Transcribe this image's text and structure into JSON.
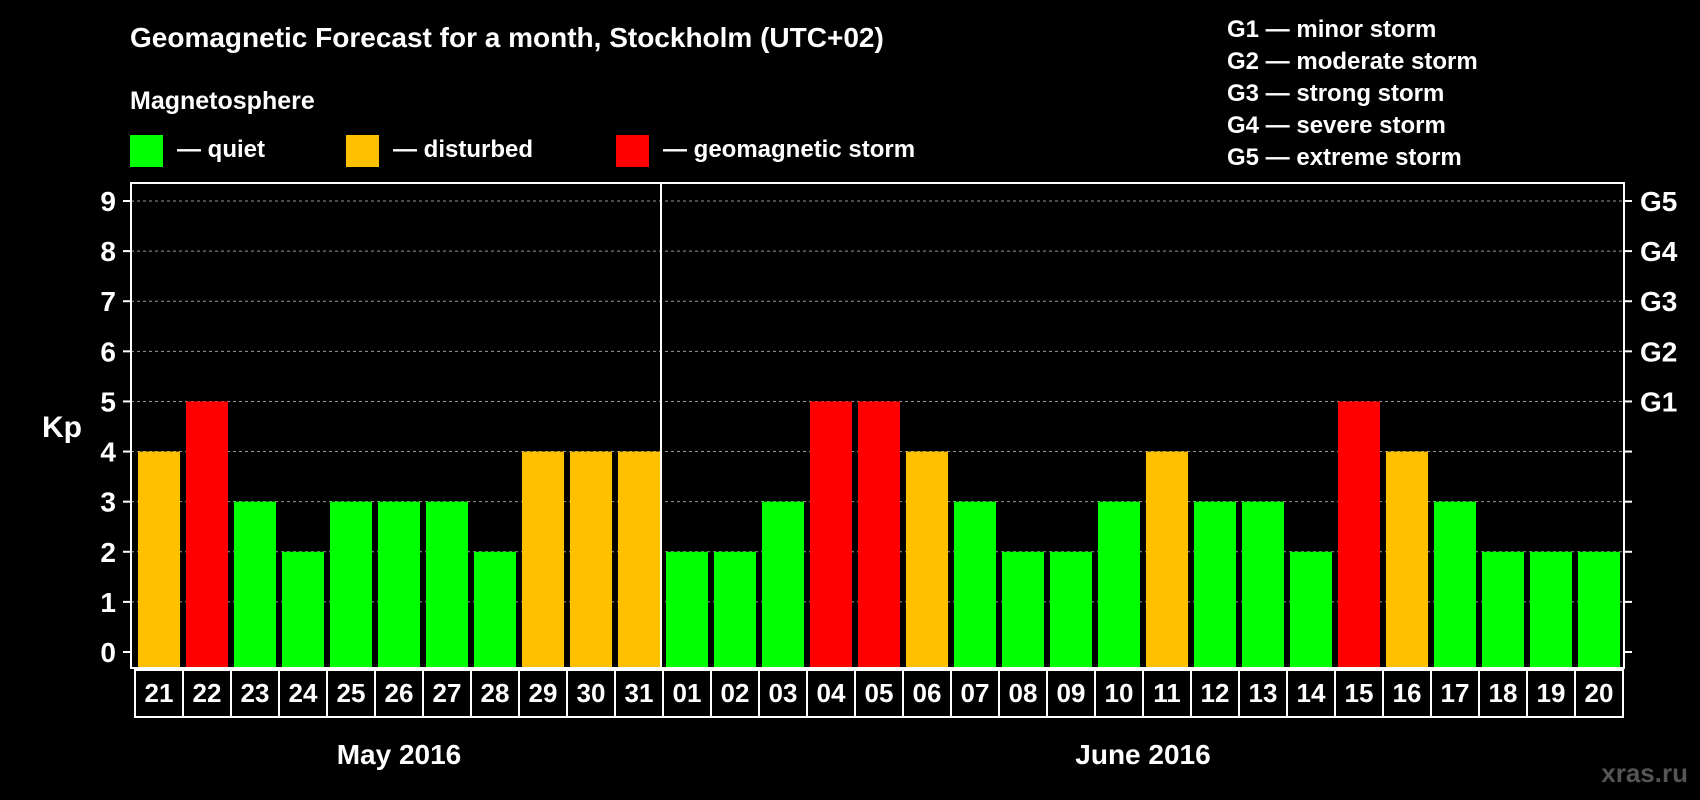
{
  "title": "Geomagnetic Forecast for a month, Stockholm (UTC+02)",
  "legend": {
    "heading": "Magnetosphere",
    "items": [
      {
        "key": "quiet",
        "label": "— quiet",
        "color": "#00ff00"
      },
      {
        "key": "disturbed",
        "label": "— disturbed",
        "color": "#ffc000"
      },
      {
        "key": "storm",
        "label": "— geomagnetic storm",
        "color": "#ff0000"
      }
    ]
  },
  "storm_scale": [
    "G1 — minor storm",
    "G2 — moderate storm",
    "G3 — strong storm",
    "G4 — severe storm",
    "G5 — extreme storm"
  ],
  "watermark": "xras.ru",
  "chart_data": {
    "type": "bar",
    "ylabel": "Kp",
    "ylim": [
      0,
      9
    ],
    "yticks": [
      0,
      1,
      2,
      3,
      4,
      5,
      6,
      7,
      8,
      9
    ],
    "right_axis_labels": [
      {
        "value": 5,
        "label": "G1"
      },
      {
        "value": 6,
        "label": "G2"
      },
      {
        "value": 7,
        "label": "G3"
      },
      {
        "value": 8,
        "label": "G4"
      },
      {
        "value": 9,
        "label": "G5"
      }
    ],
    "categories": [
      "21",
      "22",
      "23",
      "24",
      "25",
      "26",
      "27",
      "28",
      "29",
      "30",
      "31",
      "01",
      "02",
      "03",
      "04",
      "05",
      "06",
      "07",
      "08",
      "09",
      "10",
      "11",
      "12",
      "13",
      "14",
      "15",
      "16",
      "17",
      "18",
      "19",
      "20"
    ],
    "values": [
      4,
      5,
      3,
      2,
      3,
      3,
      3,
      2,
      4,
      4,
      4,
      2,
      2,
      3,
      5,
      5,
      4,
      3,
      2,
      2,
      3,
      4,
      3,
      3,
      2,
      5,
      4,
      3,
      2,
      2,
      2
    ],
    "months": [
      {
        "label": "May 2016",
        "start_index": 0,
        "count": 11
      },
      {
        "label": "June 2016",
        "start_index": 11,
        "count": 20
      }
    ],
    "grid": true
  }
}
